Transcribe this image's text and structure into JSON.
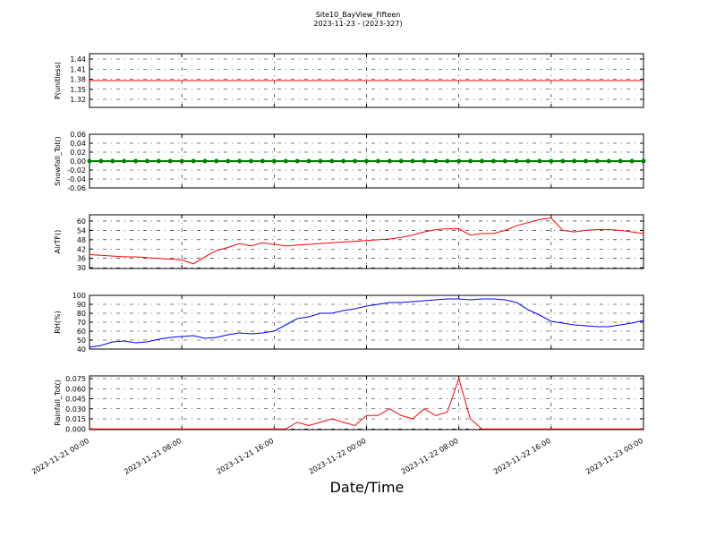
{
  "figure": {
    "title": "Site10_BayView_Fifteen",
    "subtitle": "2023-11-23 - (2023-327)",
    "x_label": "Date/Time",
    "xlim": [
      "2023-11-21 00:00",
      "2023-11-23 00:00"
    ],
    "xticks": [
      "2023-11-21 00:00",
      "2023-11-21 08:00",
      "2023-11-21 16:00",
      "2023-11-22 00:00",
      "2023-11-22 08:00",
      "2023-11-22 16:00",
      "2023-11-23 00:00"
    ],
    "grid": true,
    "x": [
      "2023-11-21 00:00",
      "2023-11-21 01:00",
      "2023-11-21 02:00",
      "2023-11-21 03:00",
      "2023-11-21 04:00",
      "2023-11-21 05:00",
      "2023-11-21 06:00",
      "2023-11-21 07:00",
      "2023-11-21 08:00",
      "2023-11-21 09:00",
      "2023-11-21 10:00",
      "2023-11-21 11:00",
      "2023-11-21 12:00",
      "2023-11-21 13:00",
      "2023-11-21 14:00",
      "2023-11-21 15:00",
      "2023-11-21 16:00",
      "2023-11-21 17:00",
      "2023-11-21 18:00",
      "2023-11-21 19:00",
      "2023-11-21 20:00",
      "2023-11-21 21:00",
      "2023-11-21 22:00",
      "2023-11-21 23:00",
      "2023-11-22 00:00",
      "2023-11-22 01:00",
      "2023-11-22 02:00",
      "2023-11-22 03:00",
      "2023-11-22 04:00",
      "2023-11-22 05:00",
      "2023-11-22 06:00",
      "2023-11-22 07:00",
      "2023-11-22 08:00",
      "2023-11-22 09:00",
      "2023-11-22 10:00",
      "2023-11-22 11:00",
      "2023-11-22 12:00",
      "2023-11-22 13:00",
      "2023-11-22 14:00",
      "2023-11-22 15:00",
      "2023-11-22 16:00",
      "2023-11-22 17:00",
      "2023-11-22 18:00",
      "2023-11-22 19:00",
      "2023-11-22 20:00",
      "2023-11-22 21:00",
      "2023-11-22 22:00",
      "2023-11-22 23:00",
      "2023-11-23 00:00"
    ]
  },
  "chart_data": [
    {
      "type": "line",
      "y_label": "P(unitless)",
      "ylim": [
        1.296,
        1.456
      ],
      "yticks": [
        1.32,
        1.35,
        1.38,
        1.41,
        1.44
      ],
      "series": [
        {
          "color": "#ff0000",
          "values": [
            1.376,
            1.376,
            1.376,
            1.376,
            1.376,
            1.376,
            1.376,
            1.376,
            1.376,
            1.376,
            1.376,
            1.376,
            1.376,
            1.376,
            1.376,
            1.376,
            1.376,
            1.376,
            1.376,
            1.376,
            1.376,
            1.376,
            1.376,
            1.376,
            1.376,
            1.376,
            1.376,
            1.376,
            1.376,
            1.376,
            1.376,
            1.376,
            1.376,
            1.376,
            1.376,
            1.376,
            1.376,
            1.376,
            1.376,
            1.376,
            1.376,
            1.376,
            1.376,
            1.376,
            1.376,
            1.376,
            1.376,
            1.376,
            1.376
          ]
        }
      ]
    },
    {
      "type": "line",
      "y_label": "Snowfall_Tot()",
      "ylim": [
        -0.06,
        0.06
      ],
      "yticks": [
        -0.06,
        -0.04,
        -0.02,
        {
          "value": 0,
          "label": "0.00"
        },
        0.02,
        0.04,
        0.06
      ],
      "series": [
        {
          "color": "#008000",
          "markers": true,
          "values": [
            0,
            0,
            0,
            0,
            0,
            0,
            0,
            0,
            0,
            0,
            0,
            0,
            0,
            0,
            0,
            0,
            0,
            0,
            0,
            0,
            0,
            0,
            0,
            0,
            0,
            0,
            0,
            0,
            0,
            0,
            0,
            0,
            0,
            0,
            0,
            0,
            0,
            0,
            0,
            0,
            0,
            0,
            0,
            0,
            0,
            0,
            0,
            0,
            0
          ]
        }
      ]
    },
    {
      "type": "line",
      "y_label": "AirTF()",
      "ylim": [
        29.5,
        64
      ],
      "yticks": [
        30,
        36,
        42,
        48,
        54,
        60
      ],
      "series": [
        {
          "color": "#ff0000",
          "values": [
            38.5,
            38,
            37.5,
            37,
            37,
            36.5,
            36,
            35.5,
            35,
            32.5,
            37,
            41,
            43,
            45.5,
            44,
            46,
            45,
            44,
            44.5,
            45,
            45.5,
            46,
            46.5,
            47,
            47.5,
            48,
            48.5,
            49.5,
            51,
            53,
            54.5,
            55,
            55,
            51,
            52,
            52,
            54,
            57,
            59,
            61,
            62,
            54,
            53,
            54,
            54.5,
            54.5,
            54,
            53,
            52
          ]
        }
      ]
    },
    {
      "type": "line",
      "y_label": "RH(%)",
      "ylim": [
        40,
        100
      ],
      "yticks": [
        40,
        50,
        60,
        70,
        80,
        90,
        100
      ],
      "series": [
        {
          "color": "#0000ff",
          "values": [
            42,
            44,
            48,
            49,
            47,
            48,
            51,
            53,
            54,
            55,
            52,
            53,
            56,
            58,
            57,
            58,
            60,
            67,
            74,
            76,
            80,
            80,
            83,
            85,
            88,
            90,
            92,
            92,
            93,
            94,
            95,
            96,
            96,
            95,
            96,
            96,
            95,
            92,
            84,
            78,
            71,
            69,
            67,
            66,
            65,
            65,
            67,
            69,
            72
          ]
        }
      ]
    },
    {
      "type": "line",
      "y_label": "Rainfall_Tot()",
      "ylim": [
        -0.001,
        0.079
      ],
      "yticks": [
        {
          "value": 0,
          "label": "0.000"
        },
        0.015,
        {
          "value": 0.03,
          "label": "0.030"
        },
        0.045,
        {
          "value": 0.06,
          "label": "0.060"
        },
        0.075
      ],
      "series": [
        {
          "color": "#ff0000",
          "values": [
            0,
            0,
            0,
            0,
            0,
            0,
            0,
            0,
            0,
            0,
            0,
            0,
            0,
            0,
            0,
            0,
            0,
            0,
            0.01,
            0.005,
            0.01,
            0.015,
            0.01,
            0.005,
            0.02,
            0.02,
            0.03,
            0.02,
            0.015,
            0.03,
            0.02,
            0.025,
            0.075,
            0.015,
            0,
            0,
            0,
            0,
            0,
            0,
            0,
            0,
            0,
            0,
            0,
            0,
            0,
            0,
            0
          ]
        }
      ]
    }
  ]
}
